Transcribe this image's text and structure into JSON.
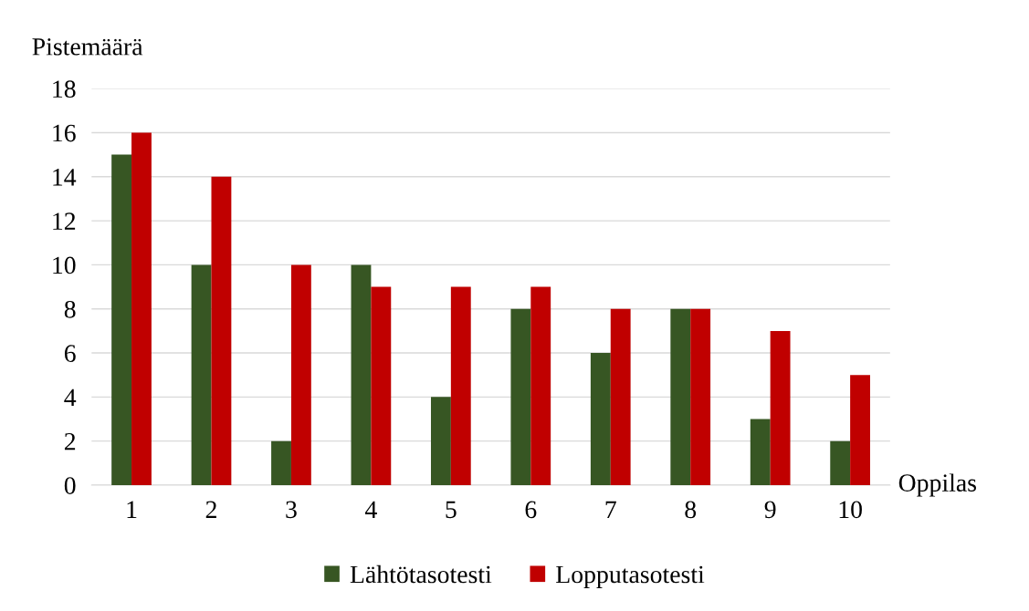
{
  "chart_data": {
    "type": "bar",
    "xlabel": "Oppilas",
    "ylabel": "Pistemäärä",
    "categories": [
      "1",
      "2",
      "3",
      "4",
      "5",
      "6",
      "7",
      "8",
      "9",
      "10"
    ],
    "series": [
      {
        "name": "Lähtötasotesti",
        "color": "#375623",
        "values": [
          15,
          10,
          2,
          10,
          4,
          8,
          6,
          8,
          3,
          2
        ]
      },
      {
        "name": "Lopputasotesti",
        "color": "#c00000",
        "values": [
          16,
          14,
          10,
          9,
          9,
          9,
          8,
          8,
          7,
          5
        ]
      }
    ],
    "ylim": [
      0,
      18
    ],
    "yticks": [
      0,
      2,
      4,
      6,
      8,
      10,
      12,
      14,
      16,
      18
    ],
    "grid": "y",
    "legend": "bottom"
  }
}
